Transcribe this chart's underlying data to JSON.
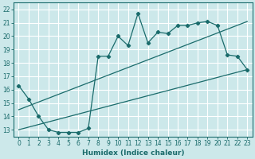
{
  "xlabel": "Humidex (Indice chaleur)",
  "bg_color": "#cce8ea",
  "grid_color": "#ffffff",
  "line_color": "#1a6b6b",
  "xlim": [
    -0.5,
    23.5
  ],
  "ylim": [
    12.5,
    22.5
  ],
  "xticks": [
    0,
    1,
    2,
    3,
    4,
    5,
    6,
    7,
    8,
    9,
    10,
    11,
    12,
    13,
    14,
    15,
    16,
    17,
    18,
    19,
    20,
    21,
    22,
    23
  ],
  "yticks": [
    13,
    14,
    15,
    16,
    17,
    18,
    19,
    20,
    21,
    22
  ],
  "line1_x": [
    0,
    1,
    2,
    3,
    4,
    5,
    6,
    7,
    8,
    9,
    10,
    11,
    12,
    13,
    14,
    15,
    16,
    17,
    18,
    19,
    20,
    21,
    22,
    23
  ],
  "line1_y": [
    16.3,
    15.3,
    14.0,
    13.0,
    12.8,
    12.8,
    12.8,
    13.1,
    18.5,
    18.5,
    20.0,
    19.3,
    21.7,
    19.5,
    20.3,
    20.2,
    20.8,
    20.8,
    21.0,
    21.1,
    20.8,
    18.6,
    18.5,
    17.5
  ],
  "line2_x": [
    0,
    23
  ],
  "line2_y": [
    13.0,
    17.5
  ],
  "line3_x": [
    0,
    23
  ],
  "line3_y": [
    14.5,
    21.1
  ]
}
